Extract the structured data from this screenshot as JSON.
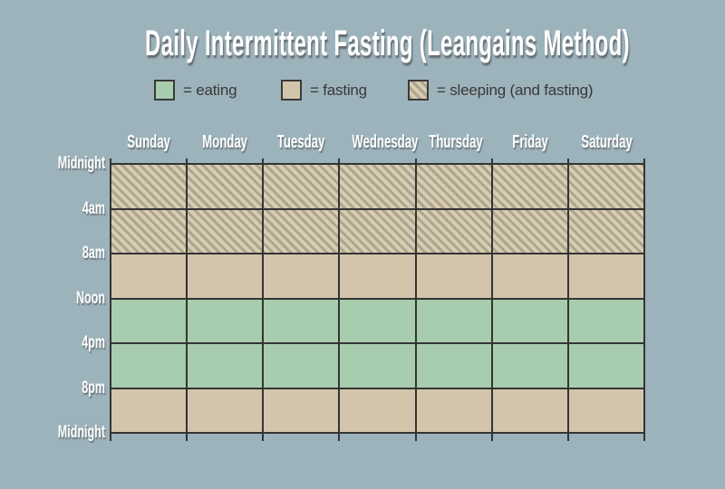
{
  "title": "Daily Intermittent Fasting (Leangains Method)",
  "legend": {
    "items": [
      {
        "key": "eating",
        "label": "= eating"
      },
      {
        "key": "fasting",
        "label": "= fasting"
      },
      {
        "key": "sleeping",
        "label": "= sleeping (and fasting)"
      }
    ]
  },
  "colors": {
    "background": "#9db3bc",
    "eating": "#a8ccae",
    "fasting": "#d2c5ab",
    "sleeping_base": "#d8ccb2",
    "sleeping_stripe": "#aea58f",
    "grid_line": "#343434",
    "header_text": "#ffffff",
    "legend_text": "#383838"
  },
  "chart_data": {
    "type": "heatmap",
    "title": "Daily Intermittent Fasting (Leangains Method)",
    "columns": [
      "Sunday",
      "Monday",
      "Tuesday",
      "Wednesday",
      "Thursday",
      "Friday",
      "Saturday"
    ],
    "time_ticks": [
      "Midnight",
      "4am",
      "8am",
      "Noon",
      "4pm",
      "8pm",
      "Midnight"
    ],
    "row_blocks": [
      {
        "from": "Midnight",
        "to": "4am",
        "state": "sleeping"
      },
      {
        "from": "4am",
        "to": "8am",
        "state": "sleeping"
      },
      {
        "from": "8am",
        "to": "Noon",
        "state": "fasting"
      },
      {
        "from": "Noon",
        "to": "4pm",
        "state": "eating"
      },
      {
        "from": "4pm",
        "to": "8pm",
        "state": "eating"
      },
      {
        "from": "8pm",
        "to": "Midnight",
        "state": "fasting"
      }
    ],
    "legend_entries": [
      "= eating",
      "= fasting",
      "= sleeping (and fasting)"
    ],
    "layout": {
      "grid": "on",
      "legend_position": "top",
      "x_axis": "days of week",
      "y_axis": "time of day (Midnight to Midnight, 4-hour blocks)",
      "same_schedule_every_day": true
    }
  }
}
